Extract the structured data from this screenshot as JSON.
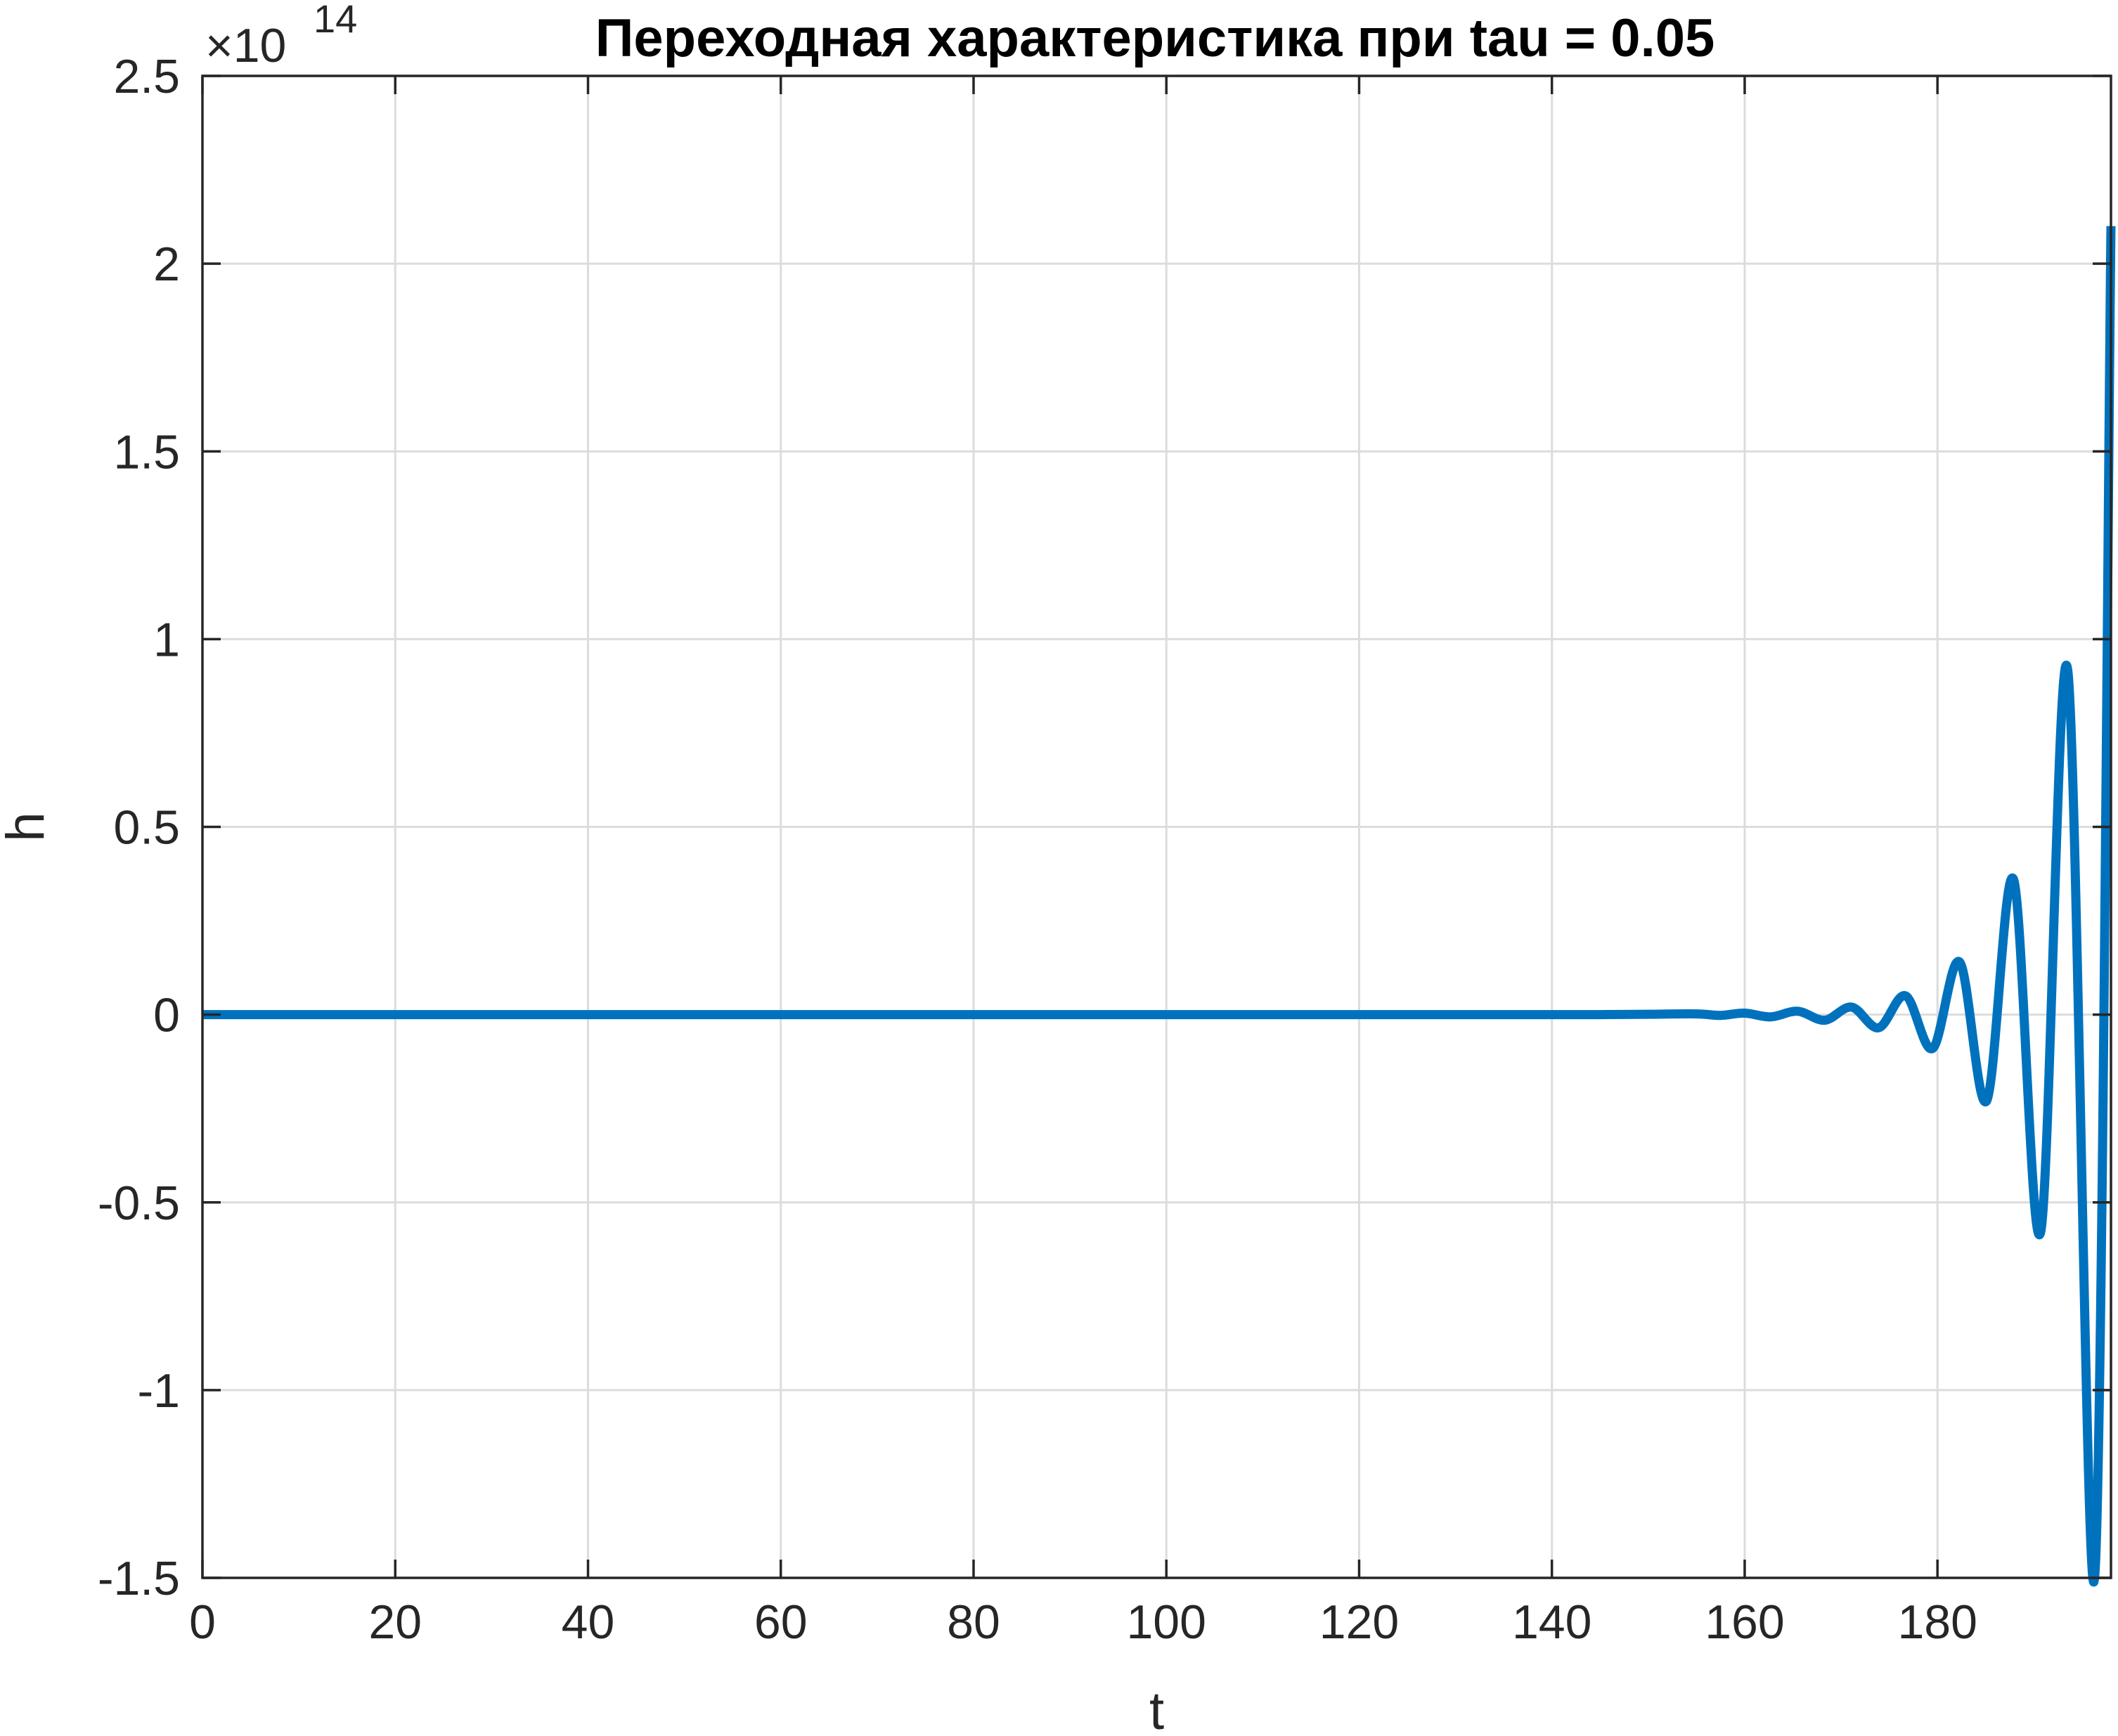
{
  "chart_data": {
    "type": "line",
    "title": "Переходная характеристика при tau = 0.05",
    "xlabel": "t",
    "ylabel": "h",
    "xlim": [
      0,
      198
    ],
    "ylim": [
      -1.5,
      2.5
    ],
    "y_exponent_label": "×10",
    "y_exponent_power": "14",
    "grid": true,
    "xticks": [
      0,
      20,
      40,
      60,
      80,
      100,
      120,
      140,
      160,
      180
    ],
    "xtick_labels": [
      "0",
      "20",
      "40",
      "60",
      "80",
      "100",
      "120",
      "140",
      "160",
      "180"
    ],
    "yticks": [
      -1.5,
      -1,
      -0.5,
      0,
      0.5,
      1,
      1.5,
      2,
      2.5
    ],
    "ytick_labels": [
      "-1.5",
      "-1",
      "-0.5",
      "0",
      "0.5",
      "1",
      "1.5",
      "2",
      "2.5"
    ],
    "series": [
      {
        "color": "#0072BD",
        "x": [
          0,
          20,
          40,
          60,
          80,
          100,
          120,
          130,
          140,
          145,
          150,
          155,
          157.5,
          160,
          162.7,
          165.5,
          168.3,
          171.1,
          173.9,
          176.7,
          179.5,
          182.3,
          185.1,
          187.9,
          190.7,
          193.5,
          196.3,
          198
        ],
        "y": [
          0,
          0,
          0,
          0,
          0,
          0,
          0,
          0,
          0,
          0,
          0.001,
          0.002,
          -0.002,
          0.004,
          -0.006,
          0.009,
          -0.015,
          0.02,
          -0.035,
          0.05,
          -0.09,
          0.14,
          -0.23,
          0.36,
          -0.58,
          0.92,
          -1.5,
          2.1
        ]
      }
    ]
  }
}
